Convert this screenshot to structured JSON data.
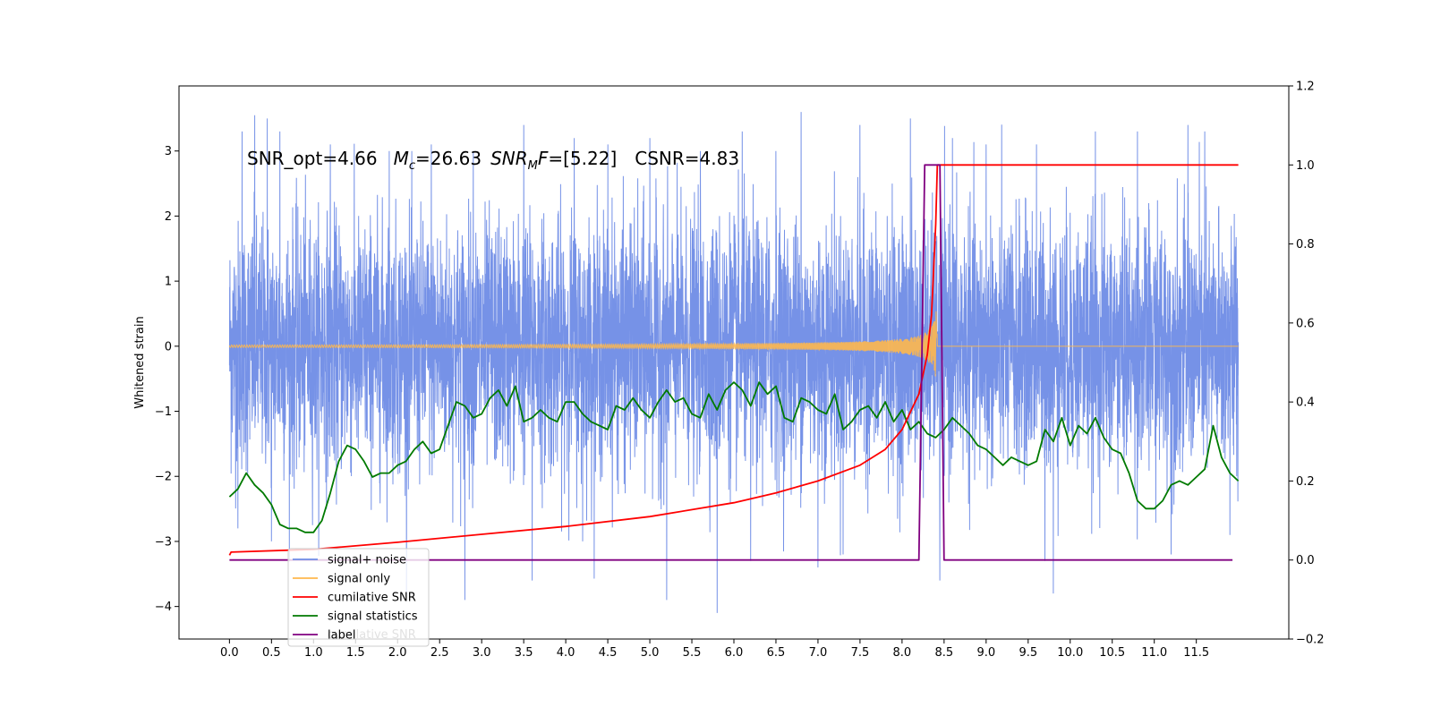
{
  "chart_data": {
    "type": "line",
    "ylabel": "Whitened strain",
    "x_ticks": [
      "0.0",
      "0.5",
      "1.0",
      "1.5",
      "2.0",
      "2.5",
      "3.0",
      "3.5",
      "4.0",
      "4.5",
      "5.0",
      "5.5",
      "6.0",
      "6.5",
      "7.0",
      "7.5",
      "8.0",
      "8.5",
      "9.0",
      "9.5",
      "10.0",
      "10.5",
      "11.0",
      "11.5"
    ],
    "xlim": [
      -0.6,
      12.6
    ],
    "y_ticks_left": [
      "3",
      "2",
      "1",
      "0",
      "−1",
      "−2",
      "−3",
      "−4"
    ],
    "ylim_left": [
      -4.5,
      4.0
    ],
    "y_ticks_right": [
      "1.2",
      "1.0",
      "0.8",
      "0.6",
      "0.4",
      "0.2",
      "0.0",
      "−0.2"
    ],
    "ylim_right": [
      -0.2,
      1.2
    ],
    "annotation": {
      "snr_opt": "SNR_opt=4.66",
      "mc_sym": "M",
      "mc_sub": "c",
      "mc_val": "=26.63",
      "snr_sym": "SNR",
      "snr_sub": "M",
      "snr_f": "F",
      "snr_val": "=[5.22]",
      "csnr": "CSNR=4.83"
    },
    "legend": {
      "placement": "lower-left",
      "items": [
        {
          "label": "signal+ noise",
          "color": "#6f8ce6"
        },
        {
          "label": "signal only",
          "color": "#ffb84d"
        },
        {
          "label": "cumilative SNR",
          "color": "#ff0000"
        },
        {
          "label": "signal statistics",
          "color": "#007a00"
        },
        {
          "label": "label",
          "color": "#800080"
        }
      ],
      "ghost_label": "cumilative SNR"
    },
    "series": [
      {
        "name": "signal+ noise",
        "axis": "left",
        "color": "#6f8ce6",
        "x_range": [
          0.0,
          12.0
        ],
        "envelope_peaks": [
          [
            0.15,
            3.3
          ],
          [
            0.3,
            3.55
          ],
          [
            0.45,
            3.5
          ],
          [
            0.6,
            3.3
          ],
          [
            1.2,
            3.1
          ],
          [
            1.9,
            3.0
          ],
          [
            2.4,
            3.1
          ],
          [
            2.9,
            3.0
          ],
          [
            3.5,
            3.4
          ],
          [
            4.1,
            3.2
          ],
          [
            4.5,
            3.1
          ],
          [
            5.0,
            3.2
          ],
          [
            5.6,
            3.0
          ],
          [
            6.1,
            3.3
          ],
          [
            6.5,
            3.0
          ],
          [
            6.8,
            3.6
          ],
          [
            7.5,
            3.4
          ],
          [
            8.1,
            3.5
          ],
          [
            8.6,
            3.2
          ],
          [
            9.0,
            3.1
          ],
          [
            9.6,
            3.1
          ],
          [
            10.3,
            3.3
          ],
          [
            10.8,
            3.3
          ],
          [
            11.4,
            3.4
          ],
          [
            11.6,
            3.3
          ]
        ],
        "envelope_troughs": [
          [
            0.1,
            -2.8
          ],
          [
            0.5,
            -3.0
          ],
          [
            2.8,
            -3.9
          ],
          [
            3.6,
            -3.6
          ],
          [
            4.2,
            -3.0
          ],
          [
            5.2,
            -3.9
          ],
          [
            5.8,
            -4.1
          ],
          [
            6.2,
            -3.3
          ],
          [
            7.0,
            -3.4
          ],
          [
            7.3,
            -3.2
          ],
          [
            8.45,
            -3.6
          ],
          [
            9.7,
            -3.3
          ],
          [
            9.8,
            -3.8
          ],
          [
            11.2,
            -3.2
          ],
          [
            11.9,
            -2.9
          ]
        ]
      },
      {
        "name": "signal only",
        "axis": "left",
        "color": "#ffb84d",
        "x_range": [
          0.0,
          12.0
        ],
        "merger_time": 8.42,
        "peak_amplitude": 0.75
      },
      {
        "name": "cumilative SNR",
        "axis": "right",
        "color": "#ff0000",
        "x": [
          0.0,
          0.02,
          1.0,
          2.0,
          3.0,
          4.0,
          5.0,
          6.0,
          6.5,
          7.0,
          7.5,
          7.8,
          8.0,
          8.2,
          8.3,
          8.35,
          8.4,
          8.42,
          8.43,
          12.0
        ],
        "y": [
          0.012,
          0.02,
          0.027,
          0.045,
          0.065,
          0.085,
          0.11,
          0.145,
          0.17,
          0.2,
          0.24,
          0.28,
          0.33,
          0.42,
          0.52,
          0.62,
          0.85,
          1.0,
          1.0,
          1.0
        ]
      },
      {
        "name": "signal statistics",
        "axis": "right",
        "color": "#007a00",
        "x": [
          0.0,
          0.1,
          0.2,
          0.3,
          0.4,
          0.5,
          0.6,
          0.7,
          0.8,
          0.9,
          1.0,
          1.1,
          1.2,
          1.3,
          1.4,
          1.5,
          1.6,
          1.7,
          1.8,
          1.9,
          2.0,
          2.1,
          2.2,
          2.3,
          2.4,
          2.5,
          2.6,
          2.7,
          2.8,
          2.9,
          3.0,
          3.1,
          3.2,
          3.3,
          3.4,
          3.5,
          3.6,
          3.7,
          3.8,
          3.9,
          4.0,
          4.1,
          4.2,
          4.3,
          4.4,
          4.5,
          4.6,
          4.7,
          4.8,
          4.9,
          5.0,
          5.1,
          5.2,
          5.3,
          5.4,
          5.5,
          5.6,
          5.7,
          5.8,
          5.9,
          6.0,
          6.1,
          6.2,
          6.3,
          6.4,
          6.5,
          6.6,
          6.7,
          6.8,
          6.9,
          7.0,
          7.1,
          7.2,
          7.3,
          7.4,
          7.5,
          7.6,
          7.7,
          7.8,
          7.9,
          8.0,
          8.1,
          8.2,
          8.3,
          8.4,
          8.5,
          8.6,
          8.7,
          8.8,
          8.9,
          9.0,
          9.1,
          9.2,
          9.3,
          9.4,
          9.5,
          9.6,
          9.7,
          9.8,
          9.9,
          10.0,
          10.1,
          10.2,
          10.3,
          10.4,
          10.5,
          10.6,
          10.7,
          10.8,
          10.9,
          11.0,
          11.1,
          11.2,
          11.3,
          11.4,
          11.5,
          11.6,
          11.7,
          11.8,
          11.9,
          12.0
        ],
        "y": [
          0.16,
          0.18,
          0.22,
          0.19,
          0.17,
          0.14,
          0.09,
          0.08,
          0.08,
          0.07,
          0.07,
          0.1,
          0.17,
          0.25,
          0.29,
          0.28,
          0.25,
          0.21,
          0.22,
          0.22,
          0.24,
          0.25,
          0.28,
          0.3,
          0.27,
          0.28,
          0.34,
          0.4,
          0.39,
          0.36,
          0.37,
          0.41,
          0.43,
          0.39,
          0.44,
          0.35,
          0.36,
          0.38,
          0.36,
          0.35,
          0.4,
          0.4,
          0.37,
          0.35,
          0.34,
          0.33,
          0.39,
          0.38,
          0.41,
          0.38,
          0.36,
          0.4,
          0.43,
          0.4,
          0.41,
          0.37,
          0.36,
          0.42,
          0.38,
          0.43,
          0.45,
          0.43,
          0.39,
          0.45,
          0.42,
          0.44,
          0.36,
          0.35,
          0.41,
          0.4,
          0.38,
          0.37,
          0.42,
          0.33,
          0.35,
          0.38,
          0.39,
          0.36,
          0.4,
          0.35,
          0.38,
          0.33,
          0.35,
          0.32,
          0.31,
          0.33,
          0.36,
          0.34,
          0.32,
          0.29,
          0.28,
          0.26,
          0.24,
          0.26,
          0.25,
          0.24,
          0.25,
          0.33,
          0.3,
          0.36,
          0.29,
          0.34,
          0.32,
          0.36,
          0.31,
          0.28,
          0.27,
          0.22,
          0.15,
          0.13,
          0.13,
          0.15,
          0.19,
          0.2,
          0.19,
          0.21,
          0.23,
          0.34,
          0.26,
          0.22,
          0.2
        ]
      },
      {
        "name": "label",
        "axis": "right",
        "color": "#800080",
        "x": [
          0.0,
          8.2,
          8.27,
          8.4,
          8.42,
          8.45,
          8.5,
          11.93
        ],
        "y": [
          0.0,
          0.0,
          1.0,
          1.0,
          1.0,
          1.0,
          0.0,
          0.0
        ]
      }
    ]
  }
}
